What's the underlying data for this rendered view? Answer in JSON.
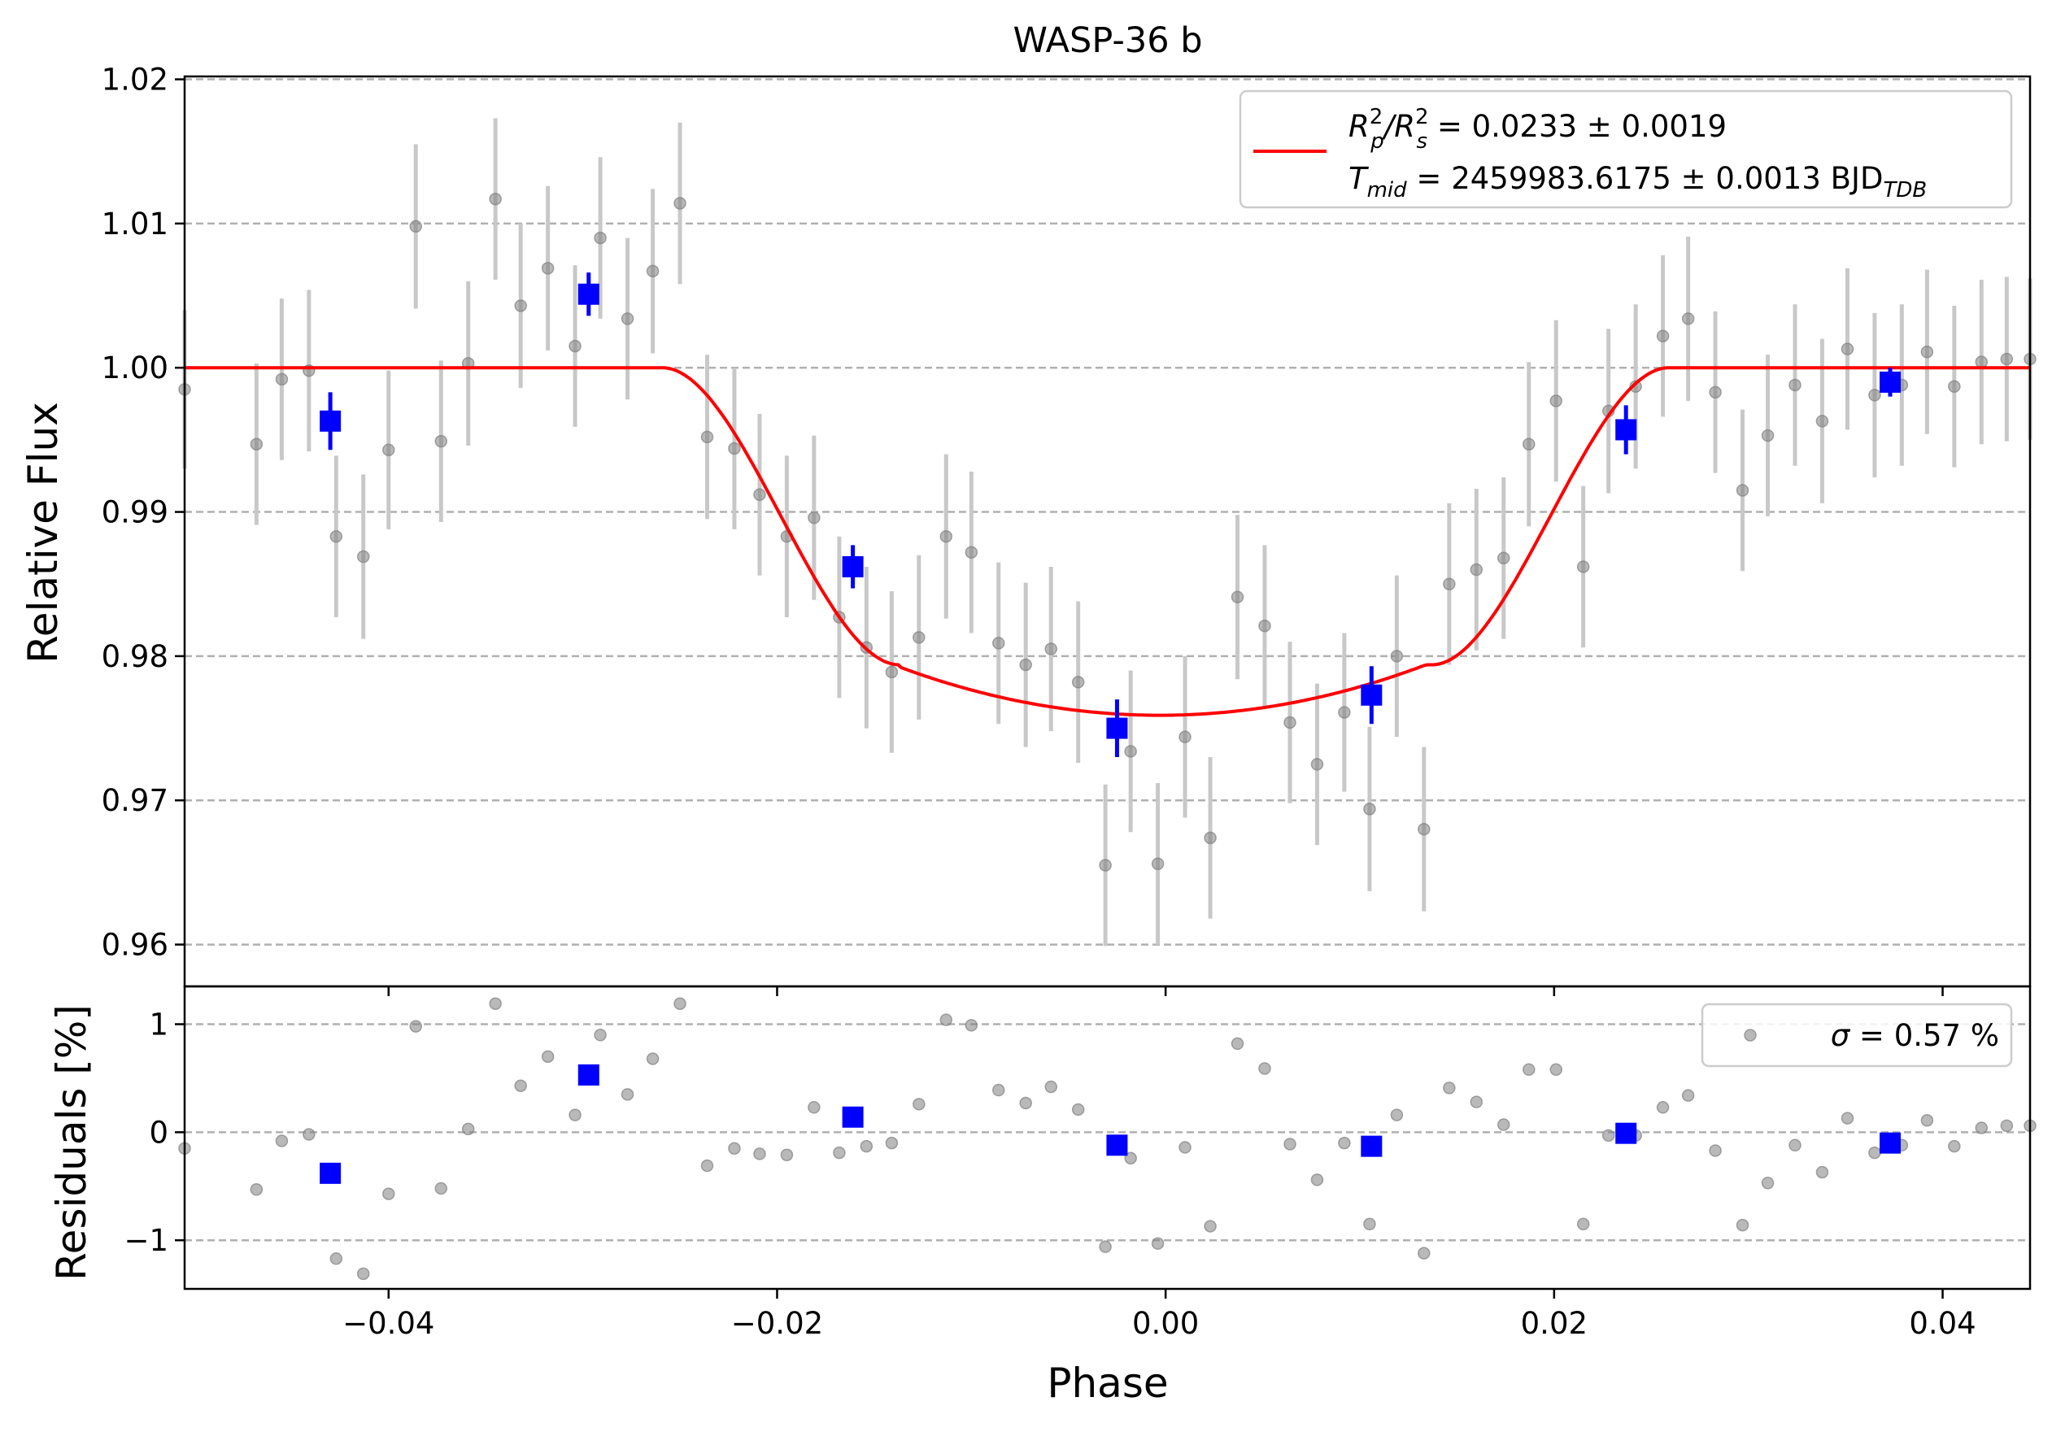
{
  "chart_data": [
    {
      "type": "scatter",
      "panel": "light-curve",
      "title": "WASP-36 b",
      "xlabel": "",
      "ylabel": "Relative Flux",
      "xlim": [
        -0.0505,
        0.0445
      ],
      "ylim": [
        0.9571,
        1.0202
      ],
      "grid": "horizontal dashed",
      "xticks": [
        -0.04,
        -0.02,
        0.0,
        0.02,
        0.04
      ],
      "xtick_labels": [
        "",
        "",
        "",
        "",
        ""
      ],
      "yticks": [
        0.96,
        0.97,
        0.98,
        0.99,
        1.0,
        1.01,
        1.02
      ],
      "ytick_labels": [
        "0.96",
        "0.97",
        "0.98",
        "0.99",
        "1.00",
        "1.01",
        "1.02"
      ],
      "legend": {
        "location": "upper-right",
        "line1_main": "R",
        "line1_sup1": "2",
        "line1_sub1": "p",
        "line1_slash": "/R",
        "line1_sup2": "2",
        "line1_sub2": "s",
        "line1_rest": " = 0.0233 ± 0.0019",
        "line2_main": "T",
        "line2_sub": "mid",
        "line2_rest": " = 2459983.6175 ± 0.0013 BJD",
        "line2_sub2": "TDB"
      },
      "model": {
        "color": "#ff0000",
        "baseline": 1.0,
        "depth_flux": 0.9759,
        "t1": -0.0259,
        "t2": -0.0137,
        "t3": 0.0137,
        "t4": 0.0259
      },
      "raw_points": {
        "color": "#808080",
        "errorbar_color": "#c8c8c8",
        "x": [
          -0.0505,
          -0.0468,
          -0.0455,
          -0.0441,
          -0.0427,
          -0.0413,
          -0.04,
          -0.0386,
          -0.0373,
          -0.0359,
          -0.0345,
          -0.0332,
          -0.0318,
          -0.0304,
          -0.0291,
          -0.0277,
          -0.0264,
          -0.025,
          -0.0236,
          -0.0222,
          -0.0209,
          -0.0195,
          -0.0181,
          -0.0168,
          -0.0154,
          -0.0141,
          -0.0127,
          -0.0113,
          -0.01,
          -0.0086,
          -0.0072,
          -0.0059,
          -0.0045,
          -0.0031,
          -0.0018,
          -0.0004,
          0.001,
          0.0023,
          0.0037,
          0.0051,
          0.0064,
          0.0078,
          0.0092,
          0.0105,
          0.0119,
          0.0133,
          0.0146,
          0.016,
          0.0174,
          0.0187,
          0.0201,
          0.0215,
          0.0228,
          0.0242,
          0.0256,
          0.0269,
          0.0283,
          0.0297,
          0.031,
          0.0324,
          0.0338,
          0.0351,
          0.0365,
          0.0379,
          0.0392,
          0.0406,
          0.042,
          0.0433,
          0.0445
        ],
        "y": [
          0.9985,
          0.9947,
          0.9992,
          0.9998,
          0.9883,
          0.9869,
          0.9943,
          1.0098,
          0.9949,
          1.0003,
          1.0117,
          1.0043,
          1.0069,
          1.0015,
          1.009,
          1.0034,
          1.0067,
          1.0114,
          0.9952,
          0.9944,
          0.9912,
          0.9883,
          0.9896,
          0.9827,
          0.9806,
          0.9789,
          0.9813,
          0.9883,
          0.9872,
          0.9809,
          0.9794,
          0.9805,
          0.9782,
          0.9655,
          0.9734,
          0.9656,
          0.9744,
          0.9674,
          0.9841,
          0.9821,
          0.9754,
          0.9725,
          0.9761,
          0.9694,
          0.98,
          0.968,
          0.985,
          0.986,
          0.9868,
          0.9947,
          0.9977,
          0.9862,
          0.997,
          0.9987,
          1.0022,
          1.0034,
          0.9983,
          0.9915,
          0.9953,
          0.9988,
          0.9963,
          1.0013,
          0.9981,
          0.9988,
          1.0011,
          0.9987,
          1.0004,
          1.0006,
          1.0006
        ],
        "yerr": [
          0.0055,
          0.0056,
          0.0056,
          0.0056,
          0.0056,
          0.0057,
          0.0055,
          0.0057,
          0.0056,
          0.0057,
          0.0056,
          0.0057,
          0.0057,
          0.0056,
          0.0056,
          0.0056,
          0.0057,
          0.0056,
          0.0057,
          0.0056,
          0.0056,
          0.0056,
          0.0057,
          0.0056,
          0.0056,
          0.0056,
          0.0057,
          0.0057,
          0.0056,
          0.0056,
          0.0057,
          0.0057,
          0.0056,
          0.0056,
          0.0056,
          0.0056,
          0.0056,
          0.0056,
          0.0057,
          0.0056,
          0.0056,
          0.0056,
          0.0055,
          0.0057,
          0.0056,
          0.0057,
          0.0056,
          0.0056,
          0.0056,
          0.0057,
          0.0056,
          0.0056,
          0.0057,
          0.0057,
          0.0056,
          0.0057,
          0.0056,
          0.0056,
          0.0056,
          0.0056,
          0.0057,
          0.0056,
          0.0057,
          0.0056,
          0.0057,
          0.0056,
          0.0057,
          0.0057,
          0.0056
        ]
      },
      "binned_points": {
        "color": "#0000ff",
        "x": [
          -0.043,
          -0.0297,
          -0.0161,
          -0.0025,
          0.0106,
          0.0237,
          0.0373
        ],
        "y": [
          0.9963,
          1.0051,
          0.9862,
          0.975,
          0.9773,
          0.9957,
          0.999
        ],
        "yerr": [
          0.002,
          0.0015,
          0.0015,
          0.002,
          0.002,
          0.0017,
          0.001
        ]
      }
    },
    {
      "type": "scatter",
      "panel": "residuals",
      "title": "",
      "xlabel": "Phase",
      "ylabel": "Residuals [%]",
      "xlim": [
        -0.0505,
        0.0445
      ],
      "ylim": [
        -1.45,
        1.35
      ],
      "grid": "horizontal dashed",
      "xticks": [
        -0.04,
        -0.02,
        0.0,
        0.02,
        0.04
      ],
      "xtick_labels": [
        "−0.04",
        "−0.02",
        "0.00",
        "0.02",
        "0.04"
      ],
      "yticks": [
        -1,
        0,
        1
      ],
      "ytick_labels": [
        "−1",
        "0",
        "1"
      ],
      "legend": {
        "location": "upper-right",
        "prefix": "σ",
        "text": " = 0.57 %"
      },
      "raw_points": {
        "color": "#808080",
        "x": [
          -0.0505,
          -0.0468,
          -0.0455,
          -0.0441,
          -0.0427,
          -0.0413,
          -0.04,
          -0.0386,
          -0.0373,
          -0.0359,
          -0.0345,
          -0.0332,
          -0.0318,
          -0.0304,
          -0.0291,
          -0.0277,
          -0.0264,
          -0.025,
          -0.0236,
          -0.0222,
          -0.0209,
          -0.0195,
          -0.0181,
          -0.0168,
          -0.0154,
          -0.0141,
          -0.0127,
          -0.0113,
          -0.01,
          -0.0086,
          -0.0072,
          -0.0059,
          -0.0045,
          -0.0031,
          -0.0018,
          -0.0004,
          0.001,
          0.0023,
          0.0037,
          0.0051,
          0.0064,
          0.0078,
          0.0092,
          0.0105,
          0.0119,
          0.0133,
          0.0146,
          0.016,
          0.0174,
          0.0187,
          0.0201,
          0.0215,
          0.0228,
          0.0242,
          0.0256,
          0.0269,
          0.0283,
          0.0297,
          0.031,
          0.0324,
          0.0338,
          0.0351,
          0.0365,
          0.0379,
          0.0392,
          0.0406,
          0.042,
          0.0433,
          0.0445
        ],
        "y": [
          -0.15,
          -0.53,
          -0.08,
          -0.02,
          -1.17,
          -1.31,
          -0.57,
          0.98,
          -0.52,
          0.03,
          1.19,
          0.43,
          0.7,
          0.16,
          0.9,
          0.35,
          0.68,
          1.19,
          -0.31,
          -0.15,
          -0.2,
          -0.21,
          0.23,
          -0.19,
          -0.13,
          -0.1,
          0.26,
          1.04,
          0.99,
          0.39,
          0.27,
          0.42,
          0.21,
          -1.06,
          -0.24,
          -1.03,
          -0.14,
          -0.87,
          0.82,
          0.59,
          -0.11,
          -0.44,
          -0.1,
          -0.85,
          0.16,
          -1.12,
          0.41,
          0.28,
          0.07,
          0.58,
          0.58,
          -0.85,
          -0.03,
          -0.03,
          0.23,
          0.34,
          -0.17,
          -0.86,
          -0.47,
          -0.12,
          -0.37,
          0.13,
          -0.19,
          -0.12,
          0.11,
          -0.13,
          0.04,
          0.06,
          0.06
        ]
      },
      "binned_points": {
        "color": "#0000ff",
        "x": [
          -0.043,
          -0.0297,
          -0.0161,
          -0.0025,
          0.0106,
          0.0237,
          0.0373
        ],
        "y": [
          -0.38,
          0.53,
          0.14,
          -0.12,
          -0.13,
          -0.01,
          -0.1
        ]
      }
    }
  ]
}
